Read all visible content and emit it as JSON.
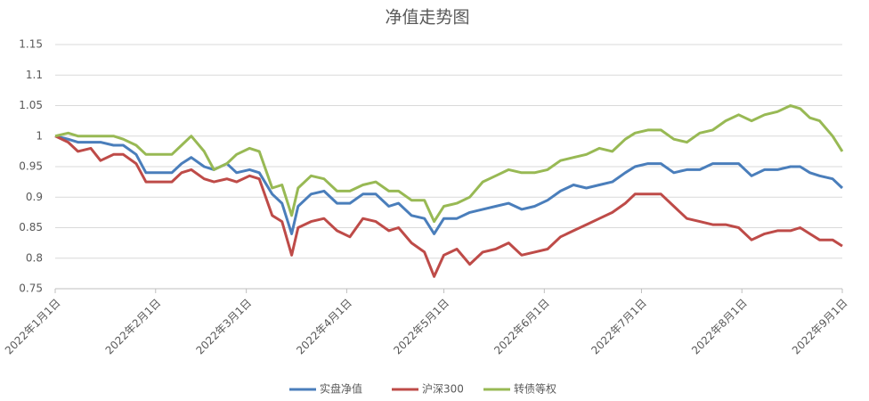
{
  "chart_data": {
    "type": "line",
    "title": "净值走势图",
    "x": [
      "2022-01-01",
      "2022-01-05",
      "2022-01-08",
      "2022-01-12",
      "2022-01-15",
      "2022-01-19",
      "2022-01-22",
      "2022-01-26",
      "2022-01-29",
      "2022-02-02",
      "2022-02-06",
      "2022-02-09",
      "2022-02-12",
      "2022-02-16",
      "2022-02-19",
      "2022-02-23",
      "2022-02-26",
      "2022-03-02",
      "2022-03-05",
      "2022-03-09",
      "2022-03-12",
      "2022-03-15",
      "2022-03-17",
      "2022-03-21",
      "2022-03-25",
      "2022-03-29",
      "2022-04-02",
      "2022-04-06",
      "2022-04-10",
      "2022-04-14",
      "2022-04-17",
      "2022-04-21",
      "2022-04-25",
      "2022-04-28",
      "2022-05-01",
      "2022-05-05",
      "2022-05-09",
      "2022-05-13",
      "2022-05-17",
      "2022-05-21",
      "2022-05-25",
      "2022-05-29",
      "2022-06-02",
      "2022-06-06",
      "2022-06-10",
      "2022-06-14",
      "2022-06-18",
      "2022-06-22",
      "2022-06-26",
      "2022-06-29",
      "2022-07-03",
      "2022-07-07",
      "2022-07-11",
      "2022-07-15",
      "2022-07-19",
      "2022-07-23",
      "2022-07-27",
      "2022-07-31",
      "2022-08-04",
      "2022-08-08",
      "2022-08-12",
      "2022-08-16",
      "2022-08-19",
      "2022-08-22",
      "2022-08-25",
      "2022-08-29",
      "2022-09-01"
    ],
    "series": [
      {
        "name": "实盘净值",
        "color": "#4a7ebb",
        "values": [
          1.0,
          0.995,
          0.99,
          0.99,
          0.99,
          0.985,
          0.985,
          0.97,
          0.94,
          0.94,
          0.94,
          0.955,
          0.965,
          0.95,
          0.945,
          0.955,
          0.94,
          0.945,
          0.94,
          0.905,
          0.89,
          0.84,
          0.885,
          0.905,
          0.91,
          0.89,
          0.89,
          0.905,
          0.905,
          0.885,
          0.89,
          0.87,
          0.865,
          0.84,
          0.865,
          0.865,
          0.875,
          0.88,
          0.885,
          0.89,
          0.88,
          0.885,
          0.895,
          0.91,
          0.92,
          0.915,
          0.92,
          0.925,
          0.94,
          0.95,
          0.955,
          0.955,
          0.94,
          0.945,
          0.945,
          0.955,
          0.955,
          0.955,
          0.935,
          0.945,
          0.945,
          0.95,
          0.95,
          0.94,
          0.935,
          0.93,
          0.915
        ]
      },
      {
        "name": "沪深300",
        "color": "#be4b48",
        "values": [
          1.0,
          0.99,
          0.975,
          0.98,
          0.96,
          0.97,
          0.97,
          0.955,
          0.925,
          0.925,
          0.925,
          0.94,
          0.945,
          0.93,
          0.925,
          0.93,
          0.925,
          0.935,
          0.93,
          0.87,
          0.86,
          0.805,
          0.85,
          0.86,
          0.865,
          0.845,
          0.835,
          0.865,
          0.86,
          0.845,
          0.85,
          0.825,
          0.81,
          0.77,
          0.805,
          0.815,
          0.79,
          0.81,
          0.815,
          0.825,
          0.805,
          0.81,
          0.815,
          0.835,
          0.845,
          0.855,
          0.865,
          0.875,
          0.89,
          0.905,
          0.905,
          0.905,
          0.885,
          0.865,
          0.86,
          0.855,
          0.855,
          0.85,
          0.83,
          0.84,
          0.845,
          0.845,
          0.85,
          0.84,
          0.83,
          0.83,
          0.82
        ]
      },
      {
        "name": "转债等权",
        "color": "#98b954",
        "values": [
          1.0,
          1.005,
          1.0,
          1.0,
          1.0,
          1.0,
          0.995,
          0.985,
          0.97,
          0.97,
          0.97,
          0.985,
          1.0,
          0.975,
          0.945,
          0.955,
          0.97,
          0.98,
          0.975,
          0.915,
          0.92,
          0.87,
          0.915,
          0.935,
          0.93,
          0.91,
          0.91,
          0.92,
          0.925,
          0.91,
          0.91,
          0.895,
          0.895,
          0.86,
          0.885,
          0.89,
          0.9,
          0.925,
          0.935,
          0.945,
          0.94,
          0.94,
          0.945,
          0.96,
          0.965,
          0.97,
          0.98,
          0.975,
          0.995,
          1.005,
          1.01,
          1.01,
          0.995,
          0.99,
          1.005,
          1.01,
          1.025,
          1.035,
          1.025,
          1.035,
          1.04,
          1.05,
          1.045,
          1.03,
          1.025,
          1.0,
          0.975
        ]
      }
    ],
    "xlim": [
      "2022-01-01",
      "2022-09-01"
    ],
    "xticks": [
      {
        "value": "2022-01-01",
        "label": "2022年1月1日"
      },
      {
        "value": "2022-02-01",
        "label": "2022年2月1日"
      },
      {
        "value": "2022-03-01",
        "label": "2022年3月1日"
      },
      {
        "value": "2022-04-01",
        "label": "2022年4月1日"
      },
      {
        "value": "2022-05-01",
        "label": "2022年5月1日"
      },
      {
        "value": "2022-06-01",
        "label": "2022年6月1日"
      },
      {
        "value": "2022-07-01",
        "label": "2022年7月1日"
      },
      {
        "value": "2022-08-01",
        "label": "2022年8月1日"
      },
      {
        "value": "2022-09-01",
        "label": "2022年9月1日"
      }
    ],
    "ylim": [
      0.75,
      1.15
    ],
    "yticks": [
      0.75,
      0.8,
      0.85,
      0.9,
      0.95,
      1,
      1.05,
      1.1,
      1.15
    ],
    "grid": true
  }
}
